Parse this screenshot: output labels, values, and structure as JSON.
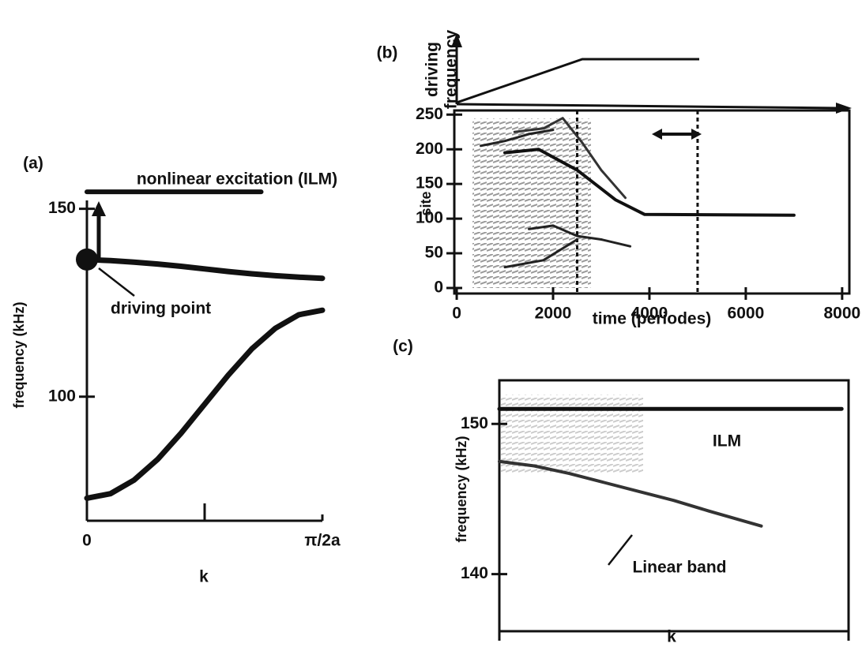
{
  "chart_data": [
    {
      "type": "line",
      "label": "(a)",
      "xlabel": "k",
      "ylabel": "frequency (kHz)",
      "xlim": [
        0,
        1
      ],
      "ylim": [
        67,
        156
      ],
      "xticks": [
        {
          "value": 0,
          "label": "0"
        },
        {
          "value": 1,
          "label": "π/2a"
        }
      ],
      "yticks": [
        100,
        150
      ],
      "series": [
        {
          "color": "#111111",
          "width": 7,
          "x": [
            0,
            0.1,
            0.2,
            0.3,
            0.4,
            0.5,
            0.6,
            0.7,
            0.8,
            0.9,
            1
          ],
          "values": [
            73,
            74.2,
            77.8,
            83.3,
            90.3,
            98,
            105.7,
            112.7,
            118.2,
            121.8,
            123
          ]
        },
        {
          "color": "#111111",
          "width": 7,
          "x": [
            0,
            0.1,
            0.2,
            0.3,
            0.4,
            0.5,
            0.6,
            0.7,
            0.8,
            0.9,
            1
          ],
          "values": [
            136.5,
            136.2,
            135.8,
            135.3,
            134.7,
            134,
            133.3,
            132.7,
            132.2,
            131.8,
            131.5
          ]
        },
        {
          "color": "#111111",
          "width": 6,
          "x": [
            0,
            0.74
          ],
          "values": [
            154.5,
            154.5
          ]
        }
      ],
      "points": [
        {
          "label": "driving point",
          "x": 0,
          "y": 136.5
        }
      ],
      "annotations": [
        "nonlinear excitation (ILM)"
      ]
    },
    {
      "type": "line",
      "label": "(b)",
      "top_label": [
        "driving",
        "frequency"
      ],
      "xlabel": "time (periodes)",
      "ylabel": "site",
      "xlim": [
        -50,
        8150
      ],
      "ylim": [
        -8,
        256
      ],
      "xticks": [
        0,
        2000,
        4000,
        6000,
        8000
      ],
      "yticks": [
        0,
        50,
        100,
        150,
        200,
        250
      ],
      "vlines": [
        2500,
        5000
      ],
      "series": [
        {
          "color": "#111111",
          "width": 4,
          "x": [
            1000,
            1700,
            2500,
            3300,
            3900,
            7000
          ],
          "values": [
            195,
            200,
            170,
            127,
            106,
            105
          ]
        },
        {
          "color": "#333333",
          "width": 3,
          "x": [
            1200,
            1800,
            2200,
            2600,
            3000,
            3500
          ],
          "values": [
            225,
            230,
            245,
            210,
            170,
            130
          ]
        },
        {
          "color": "#222222",
          "width": 3,
          "x": [
            500,
            1000,
            1500,
            2000
          ],
          "values": [
            205,
            212,
            222,
            228
          ]
        },
        {
          "color": "#222222",
          "width": 3,
          "x": [
            1500,
            2000,
            2500,
            3000,
            3600
          ],
          "values": [
            85,
            90,
            75,
            70,
            60
          ]
        },
        {
          "color": "#222222",
          "width": 3,
          "x": [
            1000,
            1800,
            2500
          ],
          "values": [
            30,
            40,
            70
          ]
        }
      ]
    },
    {
      "type": "line",
      "label": "(c)",
      "xlabel": "k",
      "ylabel": "frequency (kHz)",
      "xlim": [
        0,
        1
      ],
      "ylim": [
        136.2,
        152.9
      ],
      "yticks": [
        140,
        150
      ],
      "series": [
        {
          "color": "#111111",
          "width": 5,
          "x": [
            0,
            0.98
          ],
          "values": [
            151,
            151
          ]
        },
        {
          "color": "#333333",
          "width": 4,
          "x": [
            0,
            0.1,
            0.2,
            0.3,
            0.4,
            0.5,
            0.6,
            0.75
          ],
          "values": [
            147.5,
            147.2,
            146.7,
            146.1,
            145.5,
            144.9,
            144.2,
            143.2
          ]
        }
      ],
      "annotations": [
        "ILM",
        "Linear band"
      ]
    }
  ]
}
